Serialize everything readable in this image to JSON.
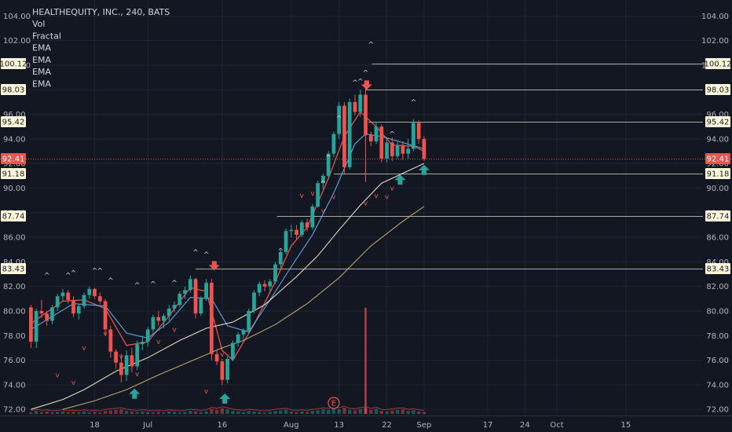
{
  "chart_data": {
    "type": "candlestick",
    "title": "HEALTHEQUITY, INC., 240, BATS",
    "indicators": [
      "Vol",
      "Fractal",
      "EMA",
      "EMA",
      "EMA",
      "EMA"
    ],
    "y_ticks": [
      104.0,
      102.0,
      100.0,
      98.0,
      96.0,
      94.0,
      92.0,
      90.0,
      88.0,
      86.0,
      84.0,
      82.0,
      80.0,
      78.0,
      76.0,
      74.0,
      72.0
    ],
    "ylim": [
      71.5,
      105.3
    ],
    "x_ticks": [
      {
        "label": "18",
        "x": 12
      },
      {
        "label": "Jul",
        "x": 22
      },
      {
        "label": "16",
        "x": 36
      },
      {
        "label": "Aug",
        "x": 49
      },
      {
        "label": "13",
        "x": 58
      },
      {
        "label": "22",
        "x": 67
      },
      {
        "label": "Sep",
        "x": 74
      },
      {
        "label": "17",
        "x": 86
      },
      {
        "label": "24",
        "x": 93
      },
      {
        "label": "Oct",
        "x": 99
      },
      {
        "label": "15",
        "x": 112
      }
    ],
    "xlim": [
      0,
      127
    ],
    "colors": {
      "up": "#26a69a",
      "down": "#ef5350",
      "background": "#131722",
      "grid": "#1f2433",
      "ema_fast": "#ef5350",
      "ema_mid": "#64b5f6",
      "ema_slow": "#f5f0d2",
      "ema_long": "#c8b27a"
    },
    "candles": [
      [
        80.3,
        80.5,
        77.0,
        77.5
      ],
      [
        77.5,
        80.2,
        77.0,
        80.0
      ],
      [
        80.0,
        80.9,
        79.4,
        79.8
      ],
      [
        79.8,
        80.0,
        78.8,
        79.2
      ],
      [
        79.2,
        80.5,
        78.9,
        80.3
      ],
      [
        80.3,
        81.4,
        80.0,
        81.2
      ],
      [
        81.2,
        81.8,
        80.8,
        81.5
      ],
      [
        81.5,
        81.7,
        80.6,
        80.9
      ],
      [
        80.9,
        81.2,
        79.5,
        79.8
      ],
      [
        79.8,
        80.6,
        79.3,
        80.4
      ],
      [
        80.4,
        81.5,
        80.2,
        81.3
      ],
      [
        81.3,
        82.0,
        81.0,
        81.8
      ],
      [
        81.8,
        81.9,
        81.0,
        81.2
      ],
      [
        81.2,
        81.5,
        80.6,
        80.8
      ],
      [
        80.8,
        81.0,
        78.0,
        78.5
      ],
      [
        78.5,
        78.8,
        76.2,
        76.7
      ],
      [
        76.7,
        76.9,
        75.3,
        75.8
      ],
      [
        75.8,
        76.5,
        74.2,
        74.8
      ],
      [
        74.8,
        76.8,
        74.3,
        76.4
      ],
      [
        76.4,
        77.0,
        75.0,
        75.5
      ],
      [
        75.5,
        77.6,
        75.2,
        77.3
      ],
      [
        77.3,
        78.0,
        76.8,
        77.5
      ],
      [
        77.5,
        78.7,
        77.1,
        78.5
      ],
      [
        78.5,
        79.7,
        78.2,
        79.5
      ],
      [
        79.5,
        80.0,
        78.8,
        79.2
      ],
      [
        79.2,
        79.8,
        78.6,
        79.6
      ],
      [
        79.6,
        80.5,
        79.2,
        80.2
      ],
      [
        80.2,
        80.8,
        79.9,
        80.5
      ],
      [
        80.5,
        81.6,
        80.3,
        81.4
      ],
      [
        81.4,
        82.0,
        81.0,
        81.7
      ],
      [
        81.7,
        82.9,
        81.5,
        82.6
      ],
      [
        82.6,
        82.7,
        79.4,
        79.8
      ],
      [
        79.8,
        81.2,
        79.6,
        81.0
      ],
      [
        81.0,
        82.6,
        80.8,
        82.3
      ],
      [
        82.3,
        82.6,
        76.0,
        76.5
      ],
      [
        76.5,
        76.9,
        75.6,
        75.9
      ],
      [
        75.9,
        76.1,
        74.0,
        74.4
      ],
      [
        74.4,
        76.3,
        74.1,
        76.1
      ],
      [
        76.1,
        77.6,
        75.9,
        77.4
      ],
      [
        77.4,
        78.3,
        77.1,
        78.1
      ],
      [
        78.1,
        78.6,
        77.6,
        78.4
      ],
      [
        78.4,
        80.2,
        78.2,
        80.0
      ],
      [
        80.0,
        81.7,
        79.8,
        81.5
      ],
      [
        81.5,
        82.4,
        81.2,
        82.2
      ],
      [
        82.2,
        82.5,
        81.6,
        82.0
      ],
      [
        82.0,
        82.6,
        81.5,
        82.4
      ],
      [
        82.4,
        84.0,
        82.2,
        83.8
      ],
      [
        83.8,
        85.0,
        83.5,
        84.8
      ],
      [
        84.8,
        86.7,
        84.6,
        86.5
      ],
      [
        86.5,
        87.0,
        86.0,
        86.6
      ],
      [
        86.6,
        87.0,
        85.8,
        86.2
      ],
      [
        86.2,
        87.4,
        86.0,
        87.2
      ],
      [
        87.2,
        87.5,
        86.5,
        86.8
      ],
      [
        86.8,
        88.7,
        86.6,
        88.5
      ],
      [
        88.5,
        90.6,
        88.4,
        90.4
      ],
      [
        90.4,
        91.2,
        89.9,
        91.0
      ],
      [
        91.0,
        93.0,
        90.7,
        92.8
      ],
      [
        92.8,
        94.6,
        92.5,
        94.4
      ],
      [
        94.4,
        97.0,
        94.0,
        96.7
      ],
      [
        96.7,
        97.0,
        91.2,
        91.7
      ],
      [
        91.7,
        97.3,
        91.5,
        97.0
      ],
      [
        97.0,
        97.6,
        95.9,
        96.2
      ],
      [
        96.2,
        98.0,
        95.8,
        97.6
      ],
      [
        97.6,
        98.2,
        90.5,
        94.3
      ],
      [
        94.3,
        94.6,
        93.4,
        93.8
      ],
      [
        93.8,
        95.4,
        93.6,
        95.0
      ],
      [
        95.0,
        95.2,
        92.1,
        92.4
      ],
      [
        92.4,
        94.0,
        92.1,
        93.7
      ],
      [
        93.7,
        94.1,
        92.2,
        92.6
      ],
      [
        92.6,
        93.9,
        92.4,
        93.5
      ],
      [
        93.5,
        93.8,
        92.3,
        92.8
      ],
      [
        92.8,
        94.0,
        92.4,
        93.2
      ],
      [
        93.2,
        95.6,
        93.0,
        95.3
      ],
      [
        95.3,
        95.5,
        93.6,
        94.0
      ],
      [
        94.0,
        94.2,
        92.2,
        92.4
      ]
    ],
    "ema_series": [
      {
        "color": "ema_fast",
        "values": [
          [
            0,
            79.0
          ],
          [
            6,
            80.8
          ],
          [
            10,
            80.9
          ],
          [
            14,
            80.2
          ],
          [
            18,
            77.2
          ],
          [
            22,
            77.5
          ],
          [
            26,
            79.6
          ],
          [
            30,
            81.9
          ],
          [
            33,
            81.6
          ],
          [
            36,
            76.8
          ],
          [
            38,
            76.0
          ],
          [
            42,
            78.9
          ],
          [
            46,
            82.4
          ],
          [
            49,
            85.3
          ],
          [
            52,
            86.8
          ],
          [
            56,
            90.8
          ],
          [
            59,
            94.2
          ],
          [
            62,
            96.2
          ],
          [
            65,
            95.0
          ],
          [
            68,
            93.5
          ],
          [
            72,
            93.4
          ],
          [
            74,
            93.0
          ]
        ]
      },
      {
        "color": "ema_mid",
        "values": [
          [
            0,
            78.5
          ],
          [
            8,
            80.6
          ],
          [
            14,
            80.4
          ],
          [
            18,
            78.2
          ],
          [
            22,
            77.8
          ],
          [
            26,
            79.1
          ],
          [
            30,
            81.1
          ],
          [
            34,
            81.0
          ],
          [
            37,
            78.8
          ],
          [
            41,
            78.3
          ],
          [
            45,
            80.9
          ],
          [
            49,
            83.6
          ],
          [
            53,
            86.2
          ],
          [
            57,
            89.6
          ],
          [
            61,
            93.6
          ],
          [
            63,
            94.4
          ],
          [
            66,
            94.2
          ],
          [
            70,
            93.7
          ],
          [
            74,
            93.2
          ]
        ]
      },
      {
        "color": "ema_slow",
        "values": [
          [
            0,
            72.0
          ],
          [
            6,
            72.8
          ],
          [
            10,
            73.6
          ],
          [
            16,
            75.1
          ],
          [
            22,
            76.2
          ],
          [
            28,
            77.6
          ],
          [
            33,
            78.6
          ],
          [
            38,
            79.1
          ],
          [
            44,
            80.5
          ],
          [
            50,
            82.8
          ],
          [
            54,
            84.5
          ],
          [
            58,
            86.6
          ],
          [
            62,
            88.6
          ],
          [
            66,
            90.4
          ],
          [
            70,
            91.2
          ],
          [
            74,
            92.0
          ]
        ]
      },
      {
        "color": "ema_long",
        "values": [
          [
            6,
            72.0
          ],
          [
            12,
            72.7
          ],
          [
            18,
            73.6
          ],
          [
            24,
            74.8
          ],
          [
            30,
            75.9
          ],
          [
            36,
            77.0
          ],
          [
            40,
            77.6
          ],
          [
            46,
            78.9
          ],
          [
            52,
            80.6
          ],
          [
            58,
            82.7
          ],
          [
            64,
            85.3
          ],
          [
            70,
            87.3
          ],
          [
            74,
            88.5
          ]
        ]
      }
    ],
    "volume": [
      0.3,
      0.6,
      0.4,
      0.5,
      0.3,
      0.4,
      0.5,
      0.3,
      0.4,
      0.3,
      0.5,
      0.3,
      0.4,
      0.3,
      0.6,
      0.7,
      0.8,
      0.9,
      0.6,
      0.5,
      0.4,
      0.5,
      0.4,
      0.3,
      0.4,
      0.3,
      0.5,
      0.4,
      0.3,
      0.4,
      0.6,
      0.5,
      0.4,
      0.5,
      1.0,
      0.8,
      1.1,
      0.9,
      0.6,
      0.5,
      0.4,
      0.6,
      0.5,
      0.4,
      0.3,
      0.4,
      0.6,
      0.7,
      0.8,
      0.5,
      0.4,
      0.5,
      0.4,
      0.6,
      0.7,
      0.9,
      0.8,
      1.0,
      0.9,
      1.2,
      0.8,
      0.7,
      0.9,
      1.1,
      0.8,
      1.0,
      0.6,
      0.5,
      0.7,
      0.8,
      0.9,
      0.6,
      0.7,
      0.5,
      0.4
    ],
    "volume_spike": {
      "index": 63,
      "value": 13.0
    },
    "fractals_up": [
      [
        3,
        82.7
      ],
      [
        7,
        82.7
      ],
      [
        8,
        82.9
      ],
      [
        12,
        83.1
      ],
      [
        13,
        83.1
      ],
      [
        15,
        82.3
      ],
      [
        20,
        81.9
      ],
      [
        23,
        82.0
      ],
      [
        27,
        82.1
      ],
      [
        31,
        84.6
      ],
      [
        33,
        84.4
      ],
      [
        47,
        84.7
      ],
      [
        55,
        90.2
      ],
      [
        56,
        92.3
      ],
      [
        58,
        95.5
      ],
      [
        61,
        98.4
      ],
      [
        62,
        98.5
      ],
      [
        63,
        99.2
      ],
      [
        64,
        101.5
      ],
      [
        68,
        94.2
      ],
      [
        72,
        96.8
      ]
    ],
    "fractals_down": [
      [
        5,
        74.6
      ],
      [
        8,
        74.0
      ],
      [
        10,
        76.8
      ],
      [
        14,
        78.0
      ],
      [
        17,
        76.1
      ],
      [
        20,
        74.7
      ],
      [
        24,
        77.3
      ],
      [
        27,
        78.3
      ],
      [
        33,
        73.3
      ],
      [
        34,
        77.5
      ],
      [
        36,
        76.3
      ],
      [
        51,
        89.2
      ],
      [
        53,
        89.4
      ],
      [
        55,
        88.0
      ],
      [
        57,
        89.1
      ],
      [
        63,
        88.6
      ],
      [
        65,
        89.2
      ],
      [
        67,
        89.1
      ],
      [
        68,
        89.8
      ]
    ],
    "arrows_down": [
      {
        "x": 34.5,
        "y": 83.55
      },
      {
        "x": 63.2,
        "y": 98.25
      }
    ],
    "arrows_up": [
      {
        "x": 19.5,
        "y": 73.7
      },
      {
        "x": 36.5,
        "y": 73.3
      },
      {
        "x": 69.5,
        "y": 91.1
      },
      {
        "x": 74.0,
        "y": 91.9
      }
    ],
    "earnings_marker": {
      "label": "E",
      "x": 57.0
    },
    "levels": [
      {
        "value": 100.12,
        "label": "100.12",
        "from": 64.2,
        "style": "thin",
        "color": "#c8c3ad",
        "tag_bg": "#fff8dc",
        "tag_fg": "#131722"
      },
      {
        "value": 98.03,
        "label": "98.03",
        "from": 63.0,
        "style": "thin",
        "color": "#c8c3ad",
        "tag_bg": "#fff8dc",
        "tag_fg": "#131722"
      },
      {
        "value": 95.42,
        "label": "95.42",
        "from": 63.5,
        "style": "thin",
        "color": "#c8c3ad",
        "tag_bg": "#fff8dc",
        "tag_fg": "#131722"
      },
      {
        "value": 92.41,
        "label": "92.41",
        "from": -1,
        "style": "current",
        "color": "#ef5350",
        "tag_bg": "#ef5350",
        "tag_fg": "#ffffff"
      },
      {
        "value": 91.18,
        "label": "91.18",
        "from": 57.0,
        "style": "thin",
        "color": "#c8c3ad",
        "tag_bg": "#fff8dc",
        "tag_fg": "#131722"
      },
      {
        "value": 87.74,
        "label": "87.74",
        "from": 46.3,
        "style": "thin",
        "color": "#c8c3ad",
        "tag_bg": "#fff8dc",
        "tag_fg": "#131722"
      },
      {
        "value": 83.43,
        "label": "83.43",
        "from": 31.0,
        "style": "thin",
        "color": "#c8c3ad",
        "tag_bg": "#fff8dc",
        "tag_fg": "#131722"
      }
    ]
  }
}
